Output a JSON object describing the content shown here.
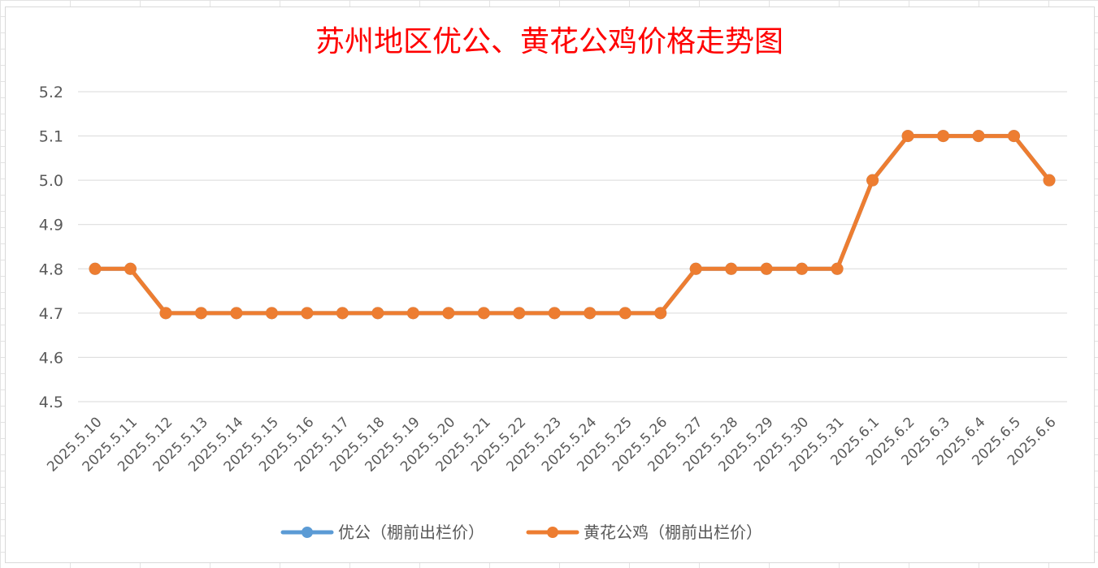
{
  "chart_data": {
    "type": "line",
    "title": "苏州地区优公、黄花公鸡价格走势图",
    "xlabel": "",
    "ylabel": "",
    "ylim": [
      4.5,
      5.2
    ],
    "yticks": [
      "4.5",
      "4.6",
      "4.7",
      "4.8",
      "4.9",
      "5.0",
      "5.1",
      "5.2"
    ],
    "grid": true,
    "legend_position": "bottom",
    "categories": [
      "2025.5.10",
      "2025.5.11",
      "2025.5.12",
      "2025.5.13",
      "2025.5.14",
      "2025.5.15",
      "2025.5.16",
      "2025.5.17",
      "2025.5.18",
      "2025.5.19",
      "2025.5.20",
      "2025.5.21",
      "2025.5.22",
      "2025.5.23",
      "2025.5.24",
      "2025.5.25",
      "2025.5.26",
      "2025.5.27",
      "2025.5.28",
      "2025.5.29",
      "2025.5.30",
      "2025.5.31",
      "2025.6.1",
      "2025.6.2",
      "2025.6.3",
      "2025.6.4",
      "2025.6.5",
      "2025.6.6"
    ],
    "series": [
      {
        "name": "优公（棚前出栏价）",
        "color": "#5b9bd5",
        "values": [
          4.8,
          4.8,
          4.7,
          4.7,
          4.7,
          4.7,
          4.7,
          4.7,
          4.7,
          4.7,
          4.7,
          4.7,
          4.7,
          4.7,
          4.7,
          4.7,
          4.7,
          4.8,
          4.8,
          4.8,
          4.8,
          4.8,
          5.0,
          5.1,
          5.1,
          5.1,
          5.1,
          5.0
        ]
      },
      {
        "name": "黄花公鸡（棚前出栏价）",
        "color": "#ed7d31",
        "values": [
          4.8,
          4.8,
          4.7,
          4.7,
          4.7,
          4.7,
          4.7,
          4.7,
          4.7,
          4.7,
          4.7,
          4.7,
          4.7,
          4.7,
          4.7,
          4.7,
          4.7,
          4.8,
          4.8,
          4.8,
          4.8,
          4.8,
          5.0,
          5.1,
          5.1,
          5.1,
          5.1,
          5.0
        ]
      }
    ]
  }
}
